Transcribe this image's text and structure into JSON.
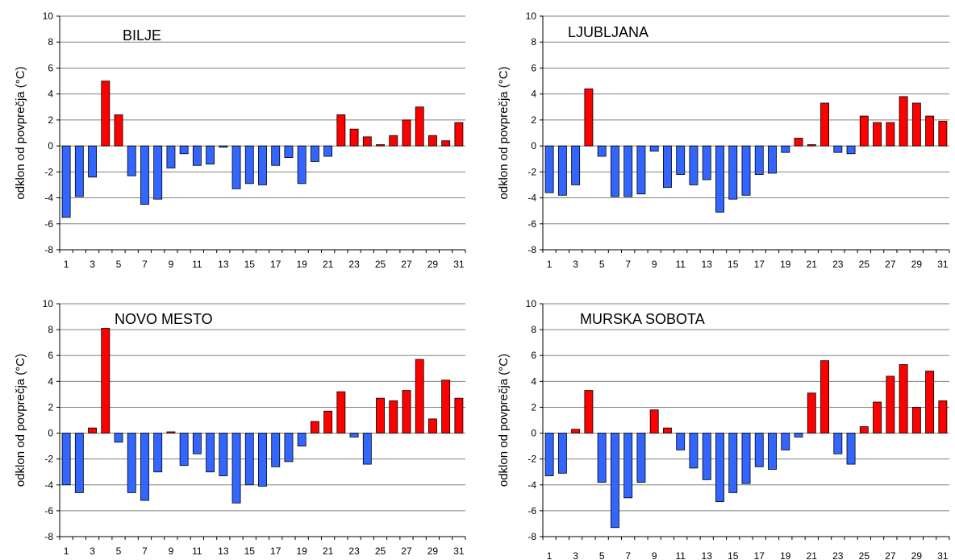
{
  "colors": {
    "positive": "#ff0000",
    "negative": "#3366ff",
    "grid": "#808080",
    "axis": "#000000"
  },
  "chart_data": [
    {
      "type": "bar",
      "title": "BILJE",
      "ylabel": "odklon od povprečja (°C)",
      "xlabel": "",
      "ylim": [
        -8,
        10
      ],
      "yticks": [
        -8,
        -6,
        -4,
        -2,
        0,
        2,
        4,
        6,
        8,
        10
      ],
      "grid": true,
      "categories": [
        1,
        2,
        3,
        4,
        5,
        6,
        7,
        8,
        9,
        10,
        11,
        12,
        13,
        14,
        15,
        16,
        17,
        18,
        19,
        20,
        21,
        22,
        23,
        24,
        25,
        26,
        27,
        28,
        29,
        30,
        31
      ],
      "values": [
        -5.5,
        -3.9,
        -2.4,
        5.0,
        2.4,
        -2.3,
        -4.5,
        -4.1,
        -1.7,
        -0.6,
        -1.5,
        -1.4,
        -0.1,
        -3.3,
        -2.9,
        -3.0,
        -1.5,
        -0.9,
        -2.9,
        -1.2,
        -0.8,
        2.4,
        1.3,
        0.7,
        0.1,
        0.8,
        2.0,
        3.0,
        0.8,
        0.4,
        1.8
      ]
    },
    {
      "type": "bar",
      "title": "LJUBLJANA",
      "ylabel": "odklon od povprečja (°C)",
      "xlabel": "",
      "ylim": [
        -8,
        10
      ],
      "yticks": [
        -8,
        -6,
        -4,
        -2,
        0,
        2,
        4,
        6,
        8,
        10
      ],
      "grid": true,
      "categories": [
        1,
        2,
        3,
        4,
        5,
        6,
        7,
        8,
        9,
        10,
        11,
        12,
        13,
        14,
        15,
        16,
        17,
        18,
        19,
        20,
        21,
        22,
        23,
        24,
        25,
        26,
        27,
        28,
        29,
        30,
        31
      ],
      "values": [
        -3.6,
        -3.8,
        -3.0,
        4.4,
        -0.8,
        -3.9,
        -3.9,
        -3.7,
        -0.4,
        -3.2,
        -2.2,
        -3.0,
        -2.6,
        -5.1,
        -4.1,
        -3.8,
        -2.2,
        -2.1,
        -0.5,
        0.6,
        0.1,
        3.3,
        -0.5,
        -0.6,
        2.3,
        1.8,
        1.8,
        3.8,
        3.3,
        2.3,
        1.9
      ]
    },
    {
      "type": "bar",
      "title": "NOVO MESTO",
      "ylabel": "odklon od povprečja (°C)",
      "xlabel": "",
      "ylim": [
        -8,
        10
      ],
      "yticks": [
        -8,
        -6,
        -4,
        -2,
        0,
        2,
        4,
        6,
        8,
        10
      ],
      "grid": true,
      "categories": [
        1,
        2,
        3,
        4,
        5,
        6,
        7,
        8,
        9,
        10,
        11,
        12,
        13,
        14,
        15,
        16,
        17,
        18,
        19,
        20,
        21,
        22,
        23,
        24,
        25,
        26,
        27,
        28,
        29,
        30,
        31
      ],
      "values": [
        -4.0,
        -4.6,
        0.4,
        8.1,
        -0.7,
        -4.6,
        -5.2,
        -3.0,
        0.1,
        -2.5,
        -1.6,
        -3.0,
        -3.3,
        -5.4,
        -4.0,
        -4.1,
        -2.6,
        -2.2,
        -1.0,
        0.9,
        1.7,
        3.2,
        -0.3,
        -2.4,
        2.7,
        2.5,
        3.3,
        5.7,
        1.1,
        4.1,
        2.7
      ]
    },
    {
      "type": "bar",
      "title": "MURSKA SOBOTA",
      "ylabel": "odklon od povprečja (°C)",
      "xlabel": "",
      "ylim": [
        -8,
        10
      ],
      "yticks": [
        -8,
        -6,
        -4,
        -2,
        0,
        2,
        4,
        6,
        8,
        10
      ],
      "grid": true,
      "categories": [
        1,
        2,
        3,
        4,
        5,
        6,
        7,
        8,
        9,
        10,
        11,
        12,
        13,
        14,
        15,
        16,
        17,
        18,
        19,
        20,
        21,
        22,
        23,
        24,
        25,
        26,
        27,
        28,
        29,
        30,
        31
      ],
      "values": [
        -3.3,
        -3.1,
        0.3,
        3.3,
        -3.8,
        -7.3,
        -5.0,
        -3.8,
        1.8,
        0.4,
        -1.3,
        -2.7,
        -3.6,
        -5.3,
        -4.6,
        -3.9,
        -2.6,
        -2.8,
        -1.3,
        -0.3,
        3.1,
        5.6,
        -1.6,
        -2.4,
        0.5,
        2.4,
        4.4,
        5.3,
        2.0,
        4.8,
        2.5
      ]
    }
  ]
}
